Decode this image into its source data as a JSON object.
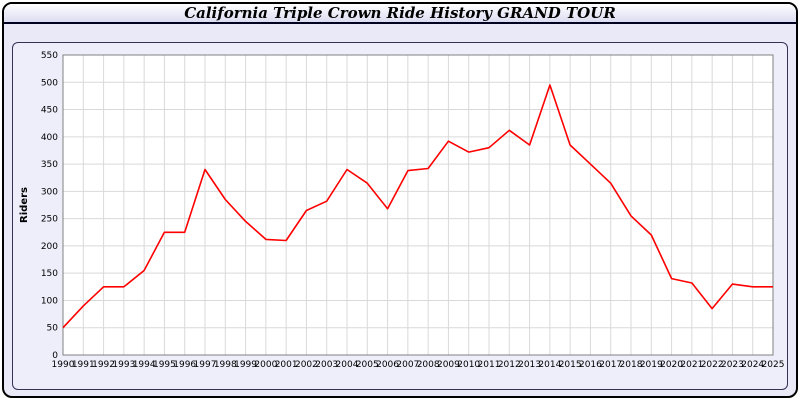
{
  "window": {
    "title": "California Triple Crown Ride History GRAND TOUR"
  },
  "chart_data": {
    "type": "line",
    "title": "California Triple Crown Ride History GRAND TOUR",
    "xlabel": "",
    "ylabel": "Riders",
    "ylim": [
      0,
      550
    ],
    "ytick_step": 50,
    "grid": true,
    "legend_position": "none",
    "line_color": "#ff0000",
    "x": [
      1990,
      1991,
      1992,
      1993,
      1994,
      1995,
      1996,
      1997,
      1998,
      1999,
      2000,
      2001,
      2002,
      2003,
      2004,
      2005,
      2006,
      2007,
      2008,
      2009,
      2010,
      2011,
      2012,
      2013,
      2014,
      2015,
      2016,
      2017,
      2018,
      2019,
      2020,
      2021,
      2022,
      2023,
      2024,
      2025
    ],
    "series": [
      {
        "name": "Riders",
        "values": [
          50,
          90,
          125,
          125,
          155,
          225,
          225,
          340,
          285,
          245,
          212,
          210,
          265,
          282,
          340,
          315,
          268,
          338,
          342,
          392,
          372,
          380,
          412,
          385,
          495,
          385,
          350,
          315,
          255,
          220,
          140,
          132,
          85,
          130,
          125,
          125
        ]
      }
    ]
  }
}
